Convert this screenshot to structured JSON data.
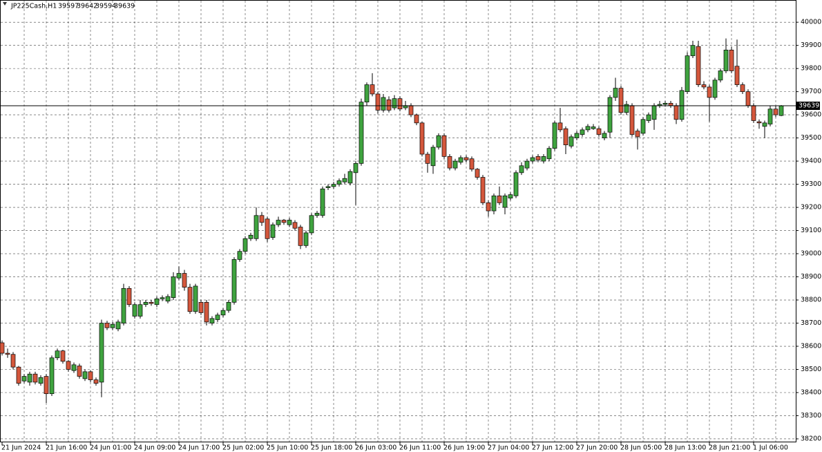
{
  "chart_data": {
    "type": "candlestick",
    "title": "JP225Cash,H1",
    "header_ohlc": [
      39597,
      39642,
      39594,
      39639
    ],
    "last_price": 39639,
    "up_color": "#3fa33f",
    "down_color": "#d4573c",
    "grid": true,
    "ylim": [
      38185,
      40096
    ],
    "yticks": [
      38200,
      38300,
      38400,
      38500,
      38600,
      38700,
      38800,
      38900,
      39000,
      39100,
      39200,
      39300,
      39400,
      39500,
      39600,
      39700,
      39800,
      39900,
      40000
    ],
    "categories": [
      "21 Jun 2024",
      null,
      null,
      null,
      null,
      null,
      null,
      null,
      "21 Jun 16:00",
      null,
      null,
      null,
      null,
      null,
      null,
      null,
      "24 Jun 01:00",
      null,
      null,
      null,
      null,
      null,
      null,
      null,
      "24 Jun 09:00",
      null,
      null,
      null,
      null,
      null,
      null,
      null,
      "24 Jun 17:00",
      null,
      null,
      null,
      null,
      null,
      null,
      null,
      "25 Jun 02:00",
      null,
      null,
      null,
      null,
      null,
      null,
      null,
      "25 Jun 10:00",
      null,
      null,
      null,
      null,
      null,
      null,
      null,
      "25 Jun 18:00",
      null,
      null,
      null,
      null,
      null,
      null,
      null,
      "26 Jun 03:00",
      null,
      null,
      null,
      null,
      null,
      null,
      null,
      "26 Jun 11:00",
      null,
      null,
      null,
      null,
      null,
      null,
      null,
      "26 Jun 19:00",
      null,
      null,
      null,
      null,
      null,
      null,
      null,
      "27 Jun 04:00",
      null,
      null,
      null,
      null,
      null,
      null,
      null,
      "27 Jun 12:00",
      null,
      null,
      null,
      null,
      null,
      null,
      null,
      "27 Jun 20:00",
      null,
      null,
      null,
      null,
      null,
      null,
      null,
      "28 Jun 05:00",
      null,
      null,
      null,
      null,
      null,
      null,
      null,
      "28 Jun 13:00",
      null,
      null,
      null,
      null,
      null,
      null,
      null,
      "28 Jun 21:00",
      null,
      null,
      null,
      null,
      null,
      null,
      null,
      "1 Jul 06:00",
      null,
      null,
      null,
      null,
      null
    ],
    "open": [
      38615,
      38570,
      38565,
      38510,
      38450,
      38445,
      38480,
      38440,
      38470,
      38395,
      38550,
      38580,
      38535,
      38495,
      38515,
      38460,
      38490,
      38455,
      38445,
      38700,
      38680,
      38675,
      38700,
      38850,
      38730,
      38730,
      38780,
      38790,
      38780,
      38805,
      38795,
      38810,
      38895,
      38915,
      38855,
      38750,
      38790,
      38790,
      38700,
      38715,
      38735,
      38755,
      38790,
      38975,
      39010,
      39065,
      39065,
      39165,
      39150,
      39070,
      39125,
      39145,
      39125,
      39135,
      39115,
      39035,
      39090,
      39165,
      39165,
      39285,
      39290,
      39300,
      39310,
      39305,
      39350,
      39390,
      39655,
      39730,
      39690,
      39620,
      39665,
      39630,
      39670,
      39630,
      39640,
      39600,
      39565,
      39430,
      39380,
      39460,
      39510,
      39420,
      39370,
      39395,
      39415,
      39410,
      39365,
      39330,
      39220,
      39185,
      39250,
      39200,
      39240,
      39250,
      39350,
      39370,
      39400,
      39420,
      39400,
      39410,
      39455,
      39565,
      39540,
      39465,
      39500,
      39515,
      39535,
      39540,
      39540,
      39500,
      39525,
      39675,
      39715,
      39610,
      39640,
      39530,
      39520,
      39575,
      39580,
      39640,
      39645,
      39650,
      39640,
      39580,
      39700,
      39855,
      39895,
      39730,
      39720,
      39675,
      39750,
      39790,
      39880,
      39810,
      39730,
      39700,
      39640,
      39570,
      39550,
      39560,
      39625,
      39597
    ],
    "high": [
      38625,
      38590,
      38575,
      38515,
      38480,
      38490,
      38490,
      38475,
      38480,
      38560,
      38590,
      38585,
      38540,
      38530,
      38525,
      38500,
      38495,
      38465,
      38715,
      38710,
      38705,
      38715,
      38870,
      38860,
      38790,
      38800,
      38800,
      38800,
      38815,
      38820,
      38825,
      38920,
      38945,
      38930,
      38870,
      38870,
      38800,
      38800,
      38730,
      38745,
      38765,
      38800,
      38985,
      39020,
      39075,
      39090,
      39200,
      39180,
      39160,
      39135,
      39160,
      39150,
      39155,
      39145,
      39125,
      39100,
      39175,
      39185,
      39290,
      39300,
      39310,
      39325,
      39345,
      39365,
      39400,
      39670,
      39740,
      39780,
      39700,
      39690,
      39680,
      39685,
      39680,
      39660,
      39650,
      39605,
      39570,
      39440,
      39470,
      39520,
      39520,
      39430,
      39410,
      39425,
      39425,
      39420,
      39370,
      39340,
      39230,
      39260,
      39290,
      39260,
      39265,
      39360,
      39395,
      39410,
      39425,
      39430,
      39430,
      39465,
      39575,
      39630,
      39550,
      39515,
      39530,
      39545,
      39560,
      39560,
      39550,
      39530,
      39685,
      39760,
      39725,
      39660,
      39650,
      39540,
      39590,
      39610,
      39650,
      39660,
      39660,
      39660,
      39650,
      39720,
      39870,
      39920,
      39920,
      39745,
      39730,
      39760,
      39800,
      39930,
      39895,
      39925,
      39740,
      39710,
      39650,
      39580,
      39575,
      39640,
      39640,
      39642
    ],
    "low": [
      38560,
      38550,
      38500,
      38430,
      38440,
      38430,
      38435,
      38430,
      38355,
      38385,
      38540,
      38525,
      38490,
      38485,
      38460,
      38450,
      38445,
      38430,
      38380,
      38670,
      38670,
      38665,
      38690,
      38770,
      38720,
      38720,
      38770,
      38775,
      38770,
      38795,
      38785,
      38800,
      38885,
      38840,
      38740,
      38740,
      38735,
      38690,
      38690,
      38705,
      38725,
      38745,
      38780,
      38965,
      39000,
      39055,
      39055,
      39120,
      39050,
      39060,
      39115,
      39125,
      39115,
      39100,
      39020,
      39025,
      39080,
      39155,
      39155,
      39275,
      39280,
      39290,
      39300,
      39295,
      39210,
      39380,
      39640,
      39680,
      39605,
      39610,
      39610,
      39620,
      39615,
      39620,
      39590,
      39555,
      39420,
      39350,
      39345,
      39450,
      39410,
      39360,
      39360,
      39385,
      39395,
      39355,
      39320,
      39210,
      39160,
      39170,
      39210,
      39170,
      39230,
      39240,
      39340,
      39360,
      39390,
      39395,
      39390,
      39400,
      39445,
      39525,
      39430,
      39455,
      39490,
      39505,
      39525,
      39535,
      39505,
      39490,
      39500,
      39660,
      39600,
      39600,
      39505,
      39450,
      39510,
      39565,
      39535,
      39630,
      39635,
      39630,
      39560,
      39570,
      39690,
      39845,
      39720,
      39710,
      39570,
      39665,
      39740,
      39780,
      39780,
      39720,
      39690,
      39630,
      39565,
      39540,
      39500,
      39550,
      39590,
      39594
    ],
    "close": [
      38570,
      38565,
      38510,
      38440,
      38470,
      38480,
      38445,
      38465,
      38395,
      38550,
      38580,
      38535,
      38500,
      38520,
      38470,
      38490,
      38455,
      38440,
      38700,
      38680,
      38695,
      38705,
      38850,
      38780,
      38780,
      38780,
      38790,
      38785,
      38805,
      38810,
      38815,
      38900,
      38915,
      38855,
      38750,
      38860,
      38745,
      38705,
      38720,
      38735,
      38755,
      38790,
      38975,
      39010,
      39065,
      39080,
      39165,
      39135,
      39065,
      39125,
      39145,
      39135,
      39145,
      39110,
      39035,
      39090,
      39165,
      39175,
      39280,
      39290,
      39300,
      39315,
      39325,
      39355,
      39390,
      39655,
      39730,
      39690,
      39620,
      39675,
      39620,
      39670,
      39625,
      39640,
      39600,
      39565,
      39430,
      39390,
      39460,
      39510,
      39420,
      39370,
      39400,
      39415,
      39405,
      39365,
      39330,
      39220,
      39185,
      39250,
      39220,
      39250,
      39255,
      39350,
      39380,
      39400,
      39415,
      39405,
      39420,
      39455,
      39565,
      39535,
      39470,
      39505,
      39520,
      39535,
      39550,
      39548,
      39515,
      39520,
      39675,
      39715,
      39610,
      39645,
      39515,
      39505,
      39580,
      39600,
      39640,
      39645,
      39650,
      39640,
      39580,
      39705,
      39855,
      39900,
      39730,
      39720,
      39675,
      39750,
      39790,
      39880,
      39790,
      39730,
      39700,
      39640,
      39575,
      39565,
      39565,
      39625,
      39600,
      39639
    ]
  }
}
